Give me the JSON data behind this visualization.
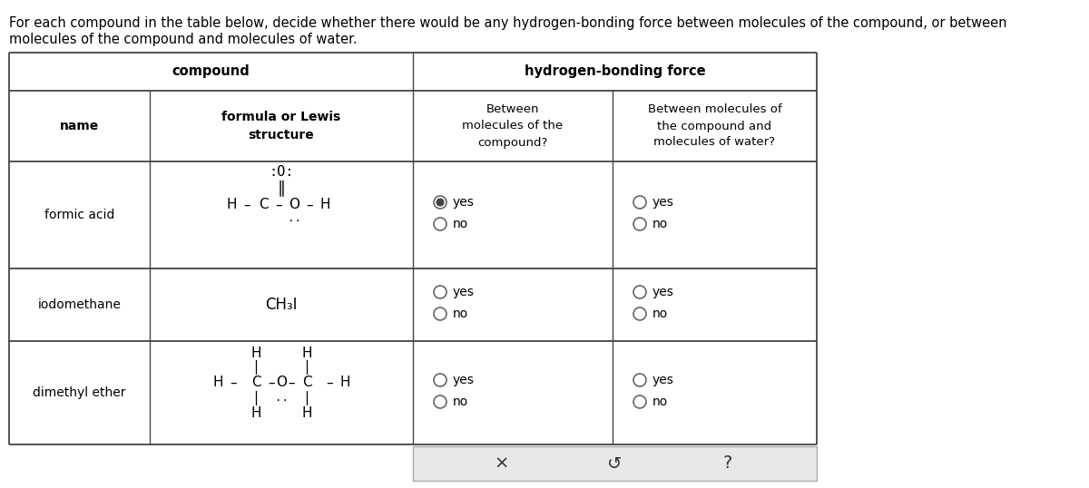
{
  "title_line1": "For each compound in the table below, decide whether there would be any hydrogen-bonding force between molecules of the compound, or between",
  "title_line2": "molecules of the compound and molecules of water.",
  "bg_color": "#ffffff",
  "text_color": "#000000",
  "sub_headers": [
    "name",
    "formula or Lewis\nstructure",
    "Between\nmolecules of the\ncompound?",
    "Between molecules of\nthe compound and\nmolecules of water?"
  ],
  "row_names": [
    "formic acid",
    "iodomethane",
    "dimethyl ether"
  ],
  "selections_col3": [
    "yes",
    "none",
    "none"
  ],
  "selections_col4": [
    "none",
    "none",
    "none"
  ],
  "bottom_bar_color": "#e8e8e8",
  "bottom_bar_border": "#aaaaaa",
  "figsize": [
    12.0,
    5.38
  ],
  "dpi": 100
}
